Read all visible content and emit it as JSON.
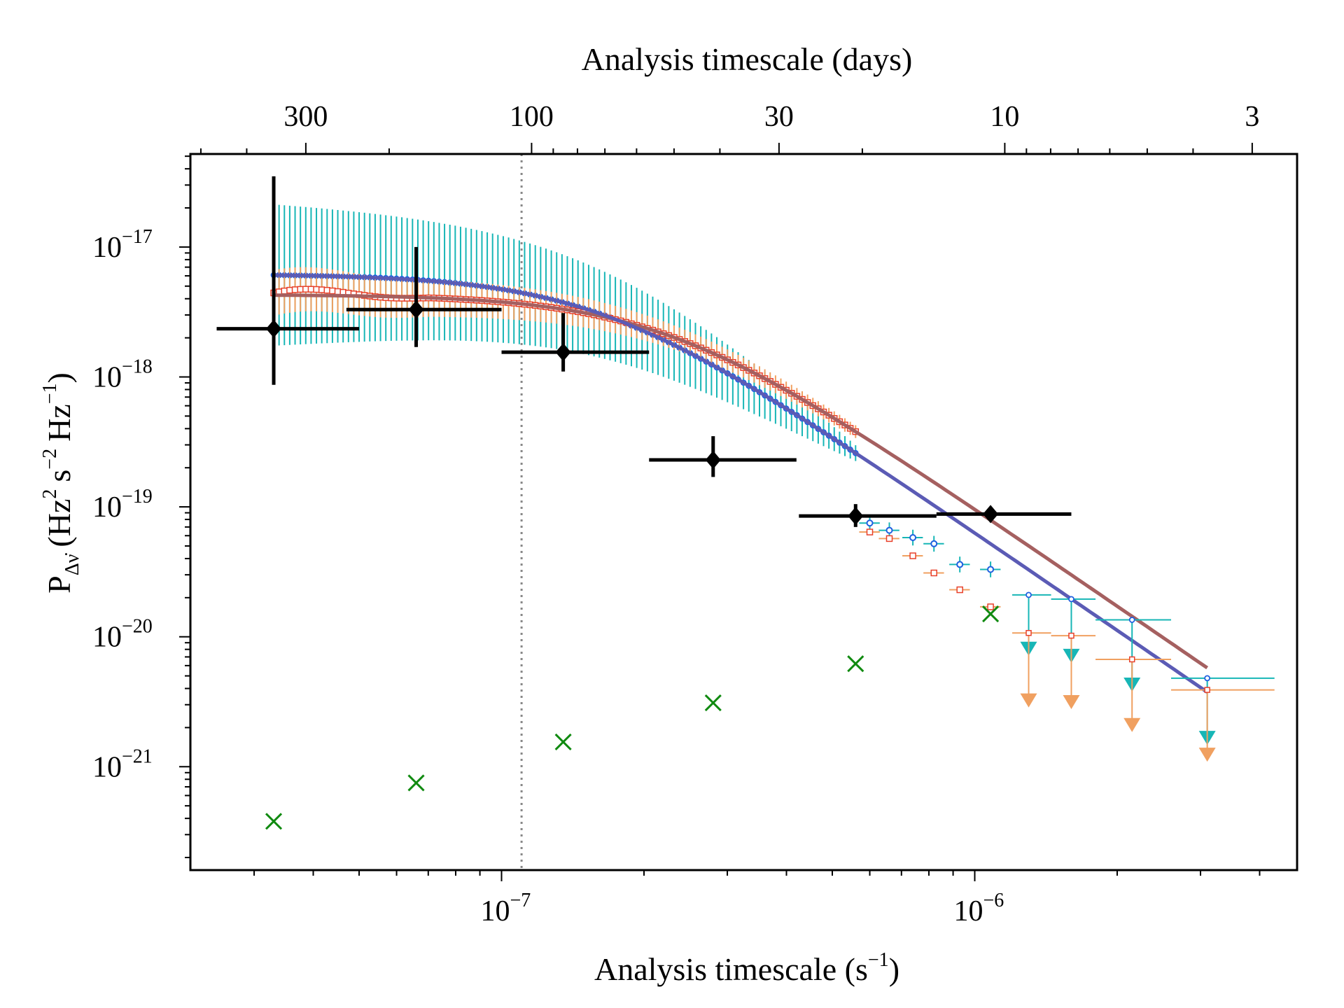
{
  "chart_data": {
    "type": "scatter",
    "title": "",
    "xlabel": "Analysis timescale (s",
    "xlabel_sup": "−1",
    "xlabel_close": ")",
    "top_xlabel": "Analysis timescale (days)",
    "ylabel_main": "P",
    "ylabel_sub": "Δν̇",
    "ylabel_units": "(Hz",
    "ylabel_sup1": "2",
    "ylabel_s": "s",
    "ylabel_sup2": "−2",
    "ylabel_hz": "Hz",
    "ylabel_sup3": "−1",
    "ylabel_close": ")",
    "x_scale": "log",
    "y_scale": "log",
    "xlim": [
      2.2e-08,
      4.8e-06
    ],
    "ylim": [
      1.6e-22,
      5.2e-17
    ],
    "grid": false,
    "x_ticks": [
      {
        "base": "10",
        "exp": "−7",
        "value": 1e-07
      },
      {
        "base": "10",
        "exp": "−6",
        "value": 1e-06
      }
    ],
    "y_ticks": [
      {
        "base": "10",
        "exp": "−21",
        "value": 1e-21
      },
      {
        "base": "10",
        "exp": "−20",
        "value": 1e-20
      },
      {
        "base": "10",
        "exp": "−19",
        "value": 1e-19
      },
      {
        "base": "10",
        "exp": "−18",
        "value": 1e-18
      },
      {
        "base": "10",
        "exp": "−17",
        "value": 1e-17
      }
    ],
    "top_ticks": [
      {
        "label": "300",
        "days": 300
      },
      {
        "label": "100",
        "days": 100
      },
      {
        "label": "30",
        "days": 30
      },
      {
        "label": "10",
        "days": 10
      },
      {
        "label": "3",
        "days": 3
      }
    ],
    "reference_line_days": 105,
    "colors": {
      "black": "#000000",
      "cyan": "#17b6b6",
      "blue": "#1f5fe0",
      "orange": "#f0a060",
      "red": "#e8402a",
      "model_blue": "#5b5bb5",
      "model_red": "#a56060",
      "green": "#108a10",
      "vline": "#888888"
    },
    "black_points": [
      {
        "x": 3.3e-08,
        "y": 2.35e-18,
        "x_lo": 2.5e-08,
        "x_hi": 5e-08,
        "y_lo": 8.7e-19,
        "y_hi": 3.5e-17
      },
      {
        "x": 6.6e-08,
        "y": 3.3e-18,
        "x_lo": 4.7e-08,
        "x_hi": 1e-07,
        "y_lo": 1.7e-18,
        "y_hi": 1e-17
      },
      {
        "x": 1.35e-07,
        "y": 1.55e-18,
        "x_lo": 1e-07,
        "x_hi": 2.05e-07,
        "y_lo": 1.1e-18,
        "y_hi": 3.1e-18
      },
      {
        "x": 2.8e-07,
        "y": 2.3e-19,
        "x_lo": 2.05e-07,
        "x_hi": 4.2e-07,
        "y_lo": 1.7e-19,
        "y_hi": 3.5e-19
      },
      {
        "x": 5.6e-07,
        "y": 8.5e-20,
        "x_lo": 4.25e-07,
        "x_hi": 8.3e-07,
        "y_lo": 7e-20,
        "y_hi": 1.05e-19
      },
      {
        "x": 1.08e-06,
        "y": 8.8e-20,
        "x_lo": 8.3e-07,
        "x_hi": 1.6e-06,
        "y_lo": 8.8e-20,
        "y_hi": 8.8e-20
      }
    ],
    "green_crosses": [
      {
        "x": 3.3e-08,
        "y": 3.8e-22
      },
      {
        "x": 6.6e-08,
        "y": 7.5e-22
      },
      {
        "x": 1.35e-07,
        "y": 1.55e-21
      },
      {
        "x": 2.8e-07,
        "y": 3.1e-21
      },
      {
        "x": 5.6e-07,
        "y": 6.2e-21
      },
      {
        "x": 1.08e-06,
        "y": 1.5e-20
      }
    ],
    "blue_dense": {
      "x_start": 3.3e-08,
      "x_end": 5.6e-07,
      "count": 110,
      "y_err_factor_start": 3.5,
      "y_err_factor_end": 1.15
    },
    "red_dense": {
      "x_start": 3.3e-08,
      "x_end": 5.6e-07,
      "count": 110,
      "y_err_factor_start": 1.5,
      "y_err_factor_end": 1.12
    },
    "blue_binned": [
      {
        "x": 6e-07,
        "y": 7.5e-20
      },
      {
        "x": 6.6e-07,
        "y": 6.6e-20
      },
      {
        "x": 7.4e-07,
        "y": 5.8e-20
      },
      {
        "x": 8.2e-07,
        "y": 5.2e-20
      },
      {
        "x": 9.3e-07,
        "y": 3.6e-20
      },
      {
        "x": 1.08e-06,
        "y": 3.3e-20
      }
    ],
    "red_binned": [
      {
        "x": 6e-07,
        "y": 6.4e-20
      },
      {
        "x": 6.6e-07,
        "y": 5.7e-20
      },
      {
        "x": 7.4e-07,
        "y": 4.2e-20
      },
      {
        "x": 8.2e-07,
        "y": 3.1e-20
      },
      {
        "x": 9.3e-07,
        "y": 2.3e-20
      },
      {
        "x": 1.08e-06,
        "y": 1.7e-20
      }
    ],
    "blue_upper_limits": [
      {
        "x": 1.3e-06,
        "y": 2.1e-20,
        "x_lo": 1.2e-06,
        "x_hi": 1.45e-06,
        "arrow_y": 8.5e-21
      },
      {
        "x": 1.6e-06,
        "y": 1.95e-20,
        "x_lo": 1.45e-06,
        "x_hi": 1.8e-06,
        "arrow_y": 7.5e-21
      },
      {
        "x": 2.15e-06,
        "y": 1.35e-20,
        "x_lo": 1.8e-06,
        "x_hi": 2.6e-06,
        "arrow_y": 4.5e-21
      },
      {
        "x": 3.1e-06,
        "y": 4.8e-21,
        "x_lo": 2.6e-06,
        "x_hi": 4.3e-06,
        "arrow_y": 1.75e-21
      }
    ],
    "red_upper_limits": [
      {
        "x": 1.3e-06,
        "y": 1.07e-20,
        "x_lo": 1.2e-06,
        "x_hi": 1.45e-06,
        "arrow_y": 3.4e-21
      },
      {
        "x": 1.6e-06,
        "y": 1.02e-20,
        "x_lo": 1.45e-06,
        "x_hi": 1.8e-06,
        "arrow_y": 3.3e-21
      },
      {
        "x": 2.15e-06,
        "y": 6.7e-21,
        "x_lo": 1.8e-06,
        "x_hi": 2.6e-06,
        "arrow_y": 2.2e-21
      },
      {
        "x": 3.1e-06,
        "y": 3.9e-21,
        "x_lo": 2.6e-06,
        "x_hi": 4.3e-06,
        "arrow_y": 1.3e-21
      }
    ],
    "model_blue": {
      "A": 6.2e-18,
      "f0": 1.6e-07,
      "alpha": 2.5,
      "x_start": 3.3e-08,
      "x_end": 3.1e-06
    },
    "model_red": {
      "A": 4.3e-18,
      "f0": 2.2e-07,
      "alpha": 2.5,
      "x_start": 3.3e-08,
      "x_end": 3.1e-06
    }
  }
}
